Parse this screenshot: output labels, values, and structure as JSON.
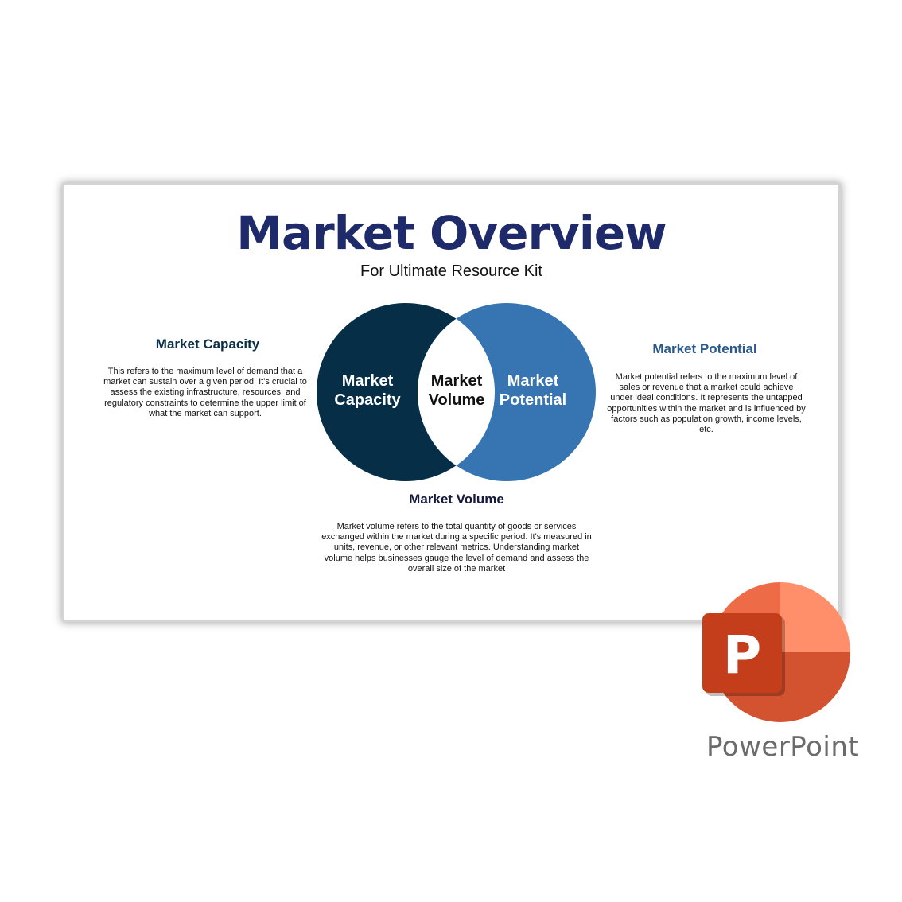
{
  "slide": {
    "title": "Market Overview",
    "subtitle": "For Ultimate Resource Kit"
  },
  "venn": {
    "left_label_line1": "Market",
    "left_label_line2": "Capacity",
    "center_label_line1": "Market",
    "center_label_line2": "Volume",
    "right_label_line1": "Market",
    "right_label_line2": "Potential",
    "colors": {
      "left_circle": "#062f47",
      "right_circle": "#3675b1",
      "overlap": "#ffffff"
    }
  },
  "sections": {
    "capacity": {
      "heading": "Market Capacity",
      "body": "This refers to the maximum level of demand that a market can sustain over a given period. It's crucial to assess the existing infrastructure, resources, and regulatory constraints to determine the upper limit of what the market can support.",
      "heading_color": "#0b2f48"
    },
    "potential": {
      "heading": "Market Potential",
      "body": "Market potential refers to the maximum level of sales or revenue that a market could achieve under ideal conditions. It represents the untapped opportunities within the market and is influenced by factors such as population growth, income levels, etc.",
      "heading_color": "#2a5a8c"
    },
    "volume": {
      "heading": "Market Volume",
      "body": "Market volume refers to the total quantity of goods or services exchanged within the market during a specific period. It's measured in units, revenue, or other relevant metrics. Understanding market volume helps businesses gauge the level of demand and assess the overall size of the market",
      "heading_color": "#15193a"
    }
  },
  "brand": {
    "app_name": "PowerPoint",
    "logo_icon": "powerpoint-logo-icon",
    "logo_letter": "P",
    "colors": {
      "quarter_top_right": "#ff8f6b",
      "quarter_top_left": "#ed6c47",
      "quarter_bottom": "#d35230",
      "tile": "#c43e1c"
    }
  }
}
